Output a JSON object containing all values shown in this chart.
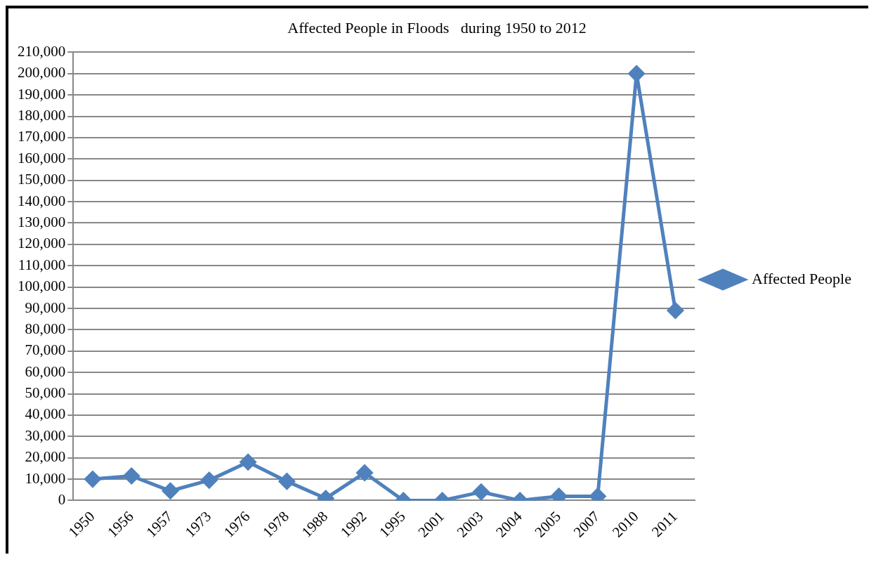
{
  "chart_data": {
    "type": "line",
    "title": "Affected People in Floods   during 1950 to 2012",
    "categories": [
      "1950",
      "1956",
      "1957",
      "1973",
      "1976",
      "1978",
      "1988",
      "1992",
      "1995",
      "2001",
      "2003",
      "2004",
      "2005",
      "2007",
      "2010",
      "2011"
    ],
    "series": [
      {
        "name": "Affected People",
        "color": "#4f81bd",
        "values": [
          10000,
          11500,
          4500,
          9500,
          18000,
          9000,
          1000,
          13000,
          0,
          0,
          4000,
          0,
          2000,
          2000,
          200000,
          89000
        ]
      }
    ],
    "ylim": [
      0,
      210000
    ],
    "yticks": [
      {
        "value": 0,
        "label": "0"
      },
      {
        "value": 10000,
        "label": "10,000"
      },
      {
        "value": 20000,
        "label": "20,000"
      },
      {
        "value": 30000,
        "label": "30,000"
      },
      {
        "value": 40000,
        "label": "40,000"
      },
      {
        "value": 50000,
        "label": "50,000"
      },
      {
        "value": 60000,
        "label": "60,000"
      },
      {
        "value": 70000,
        "label": "70,000"
      },
      {
        "value": 80000,
        "label": "80,000"
      },
      {
        "value": 90000,
        "label": "90,000"
      },
      {
        "value": 100000,
        "label": "100,000"
      },
      {
        "value": 110000,
        "label": "110,000"
      },
      {
        "value": 120000,
        "label": "120,000"
      },
      {
        "value": 130000,
        "label": "130,000"
      },
      {
        "value": 140000,
        "label": "140,000"
      },
      {
        "value": 150000,
        "label": "150,000"
      },
      {
        "value": 160000,
        "label": "160,000"
      },
      {
        "value": 170000,
        "label": "170,000"
      },
      {
        "value": 180000,
        "label": "180,000"
      },
      {
        "value": 190000,
        "label": "190,000"
      },
      {
        "value": 200000,
        "label": "200,000"
      },
      {
        "value": 210000,
        "label": "210,000"
      }
    ],
    "grid": "y",
    "legend": "right",
    "marker": "diamond",
    "line_style": "solid"
  }
}
